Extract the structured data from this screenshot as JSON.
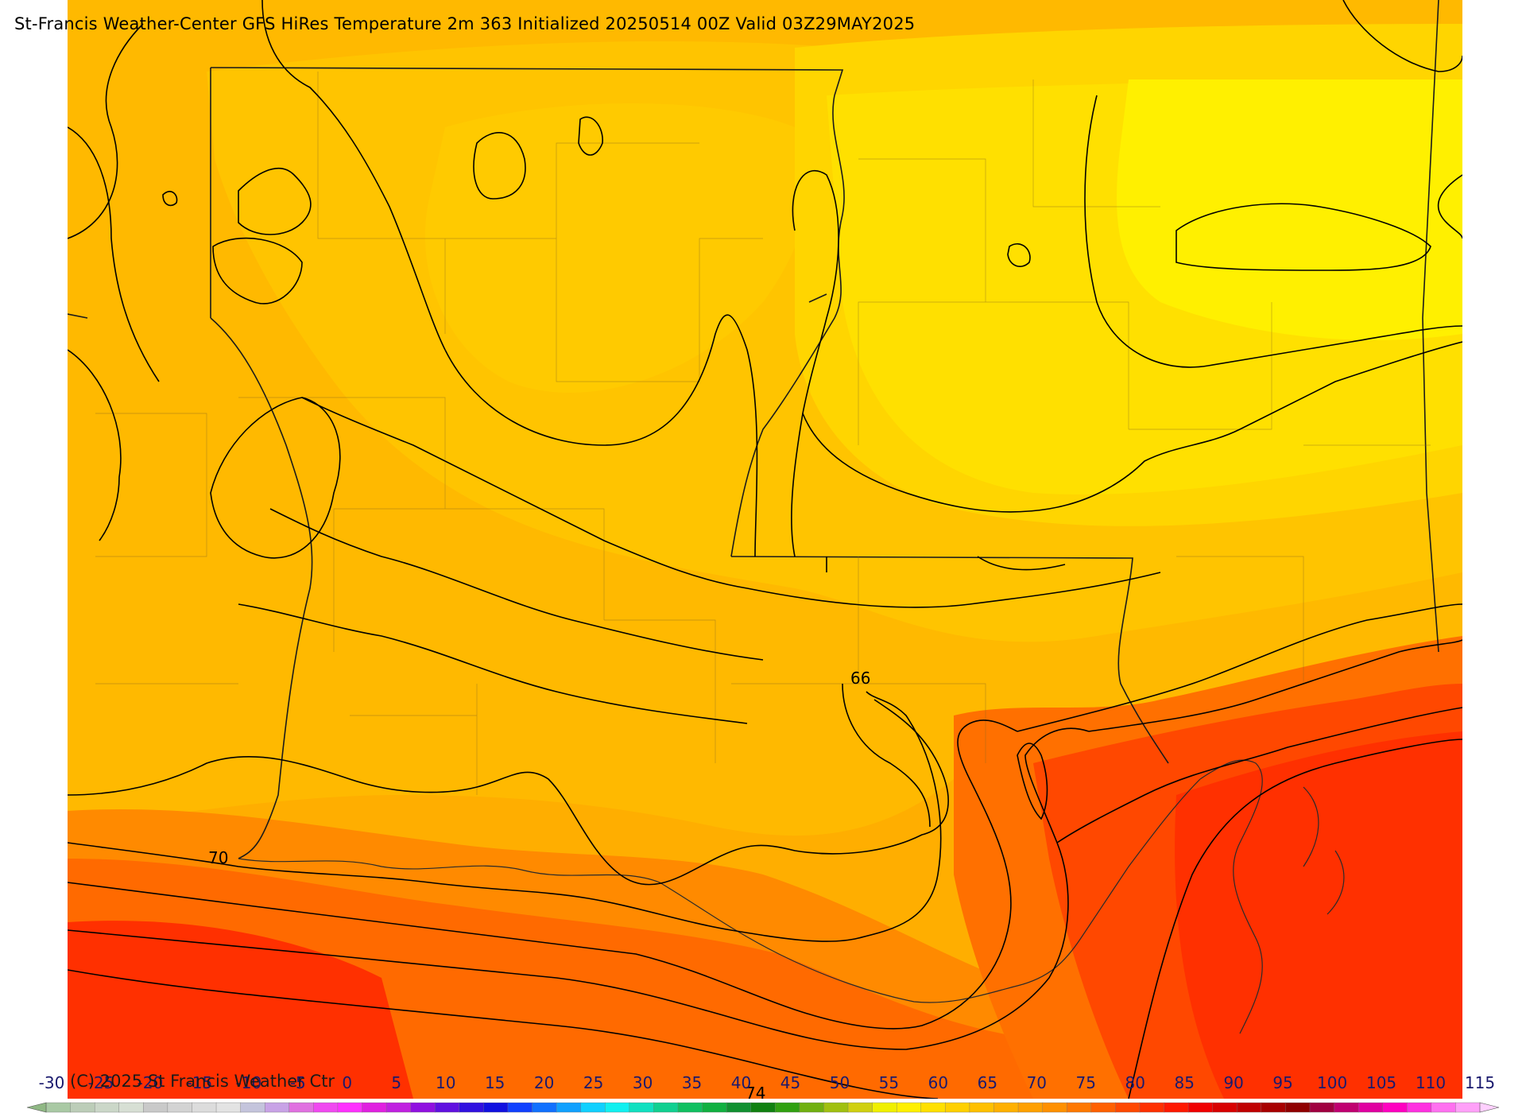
{
  "header": {
    "title": "St-Francis Weather-Center GFS HiRes Temperature 2m  363 Initialized 20250514 00Z Valid 03Z29MAY2025"
  },
  "footer": {
    "copyright": "(C) 2025 St Francis Weather Ctr"
  },
  "contour_labels": [
    "66",
    "70",
    "74"
  ],
  "colorbar": {
    "ticks": [
      "-30",
      "-25",
      "-20",
      "-15",
      "-10",
      "-5",
      "0",
      "5",
      "10",
      "15",
      "20",
      "25",
      "30",
      "35",
      "40",
      "45",
      "50",
      "55",
      "60",
      "65",
      "70",
      "75",
      "80",
      "85",
      "90",
      "95",
      "100",
      "105",
      "110",
      "115"
    ],
    "colors": [
      "#a9c9a4",
      "#bccdb8",
      "#cbd7c8",
      "#d7dfd4",
      "#c9c9c9",
      "#d3d3d3",
      "#dcdcdc",
      "#e3e3e3",
      "#c4c4dc",
      "#c8a2e6",
      "#e070e0",
      "#f048f0",
      "#ff30ff",
      "#e020e0",
      "#c020e0",
      "#9010e0",
      "#6010e0",
      "#3010e0",
      "#1010e0",
      "#1040ff",
      "#1070ff",
      "#10a0ff",
      "#10d0ff",
      "#10f0f0",
      "#10e0c0",
      "#10d090",
      "#10c060",
      "#10b040",
      "#109030",
      "#108010",
      "#30a010",
      "#70b010",
      "#a0c010",
      "#d0d010",
      "#f0f000",
      "#fff000",
      "#ffe000",
      "#ffd000",
      "#ffc000",
      "#ffb000",
      "#ffa000",
      "#ff9000",
      "#ff7800",
      "#ff6000",
      "#ff4800",
      "#ff3000",
      "#ff1800",
      "#f00000",
      "#d80000",
      "#c00000",
      "#a80000",
      "#900000",
      "#a00040",
      "#c00070",
      "#e000a0",
      "#ff00c0",
      "#ff30e0",
      "#ff70f0",
      "#ffa0f8"
    ]
  }
}
